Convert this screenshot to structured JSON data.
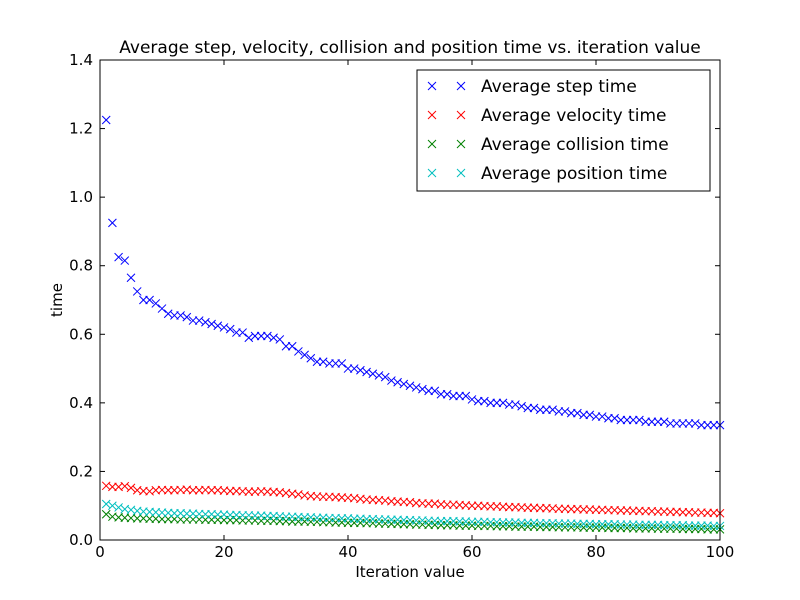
{
  "chart_data": {
    "type": "scatter",
    "title": "Average step, velocity, collision and position time vs. iteration value",
    "xlabel": "Iteration value",
    "ylabel": "time",
    "xlim": [
      0,
      100
    ],
    "ylim": [
      0,
      1.4
    ],
    "x_ticks": [
      "0",
      "20",
      "40",
      "60",
      "80",
      "100"
    ],
    "y_ticks": [
      "0.0",
      "0.2",
      "0.4",
      "0.6",
      "0.8",
      "1.0",
      "1.2",
      "1.4"
    ],
    "grid": false,
    "legend_position": "top-right",
    "marker": "x",
    "x": [
      1,
      2,
      3,
      4,
      5,
      6,
      7,
      8,
      9,
      10,
      11,
      12,
      13,
      14,
      15,
      16,
      17,
      18,
      19,
      20,
      21,
      22,
      23,
      24,
      25,
      26,
      27,
      28,
      29,
      30,
      31,
      32,
      33,
      34,
      35,
      36,
      37,
      38,
      39,
      40,
      41,
      42,
      43,
      44,
      45,
      46,
      47,
      48,
      49,
      50,
      51,
      52,
      53,
      54,
      55,
      56,
      57,
      58,
      59,
      60,
      61,
      62,
      63,
      64,
      65,
      66,
      67,
      68,
      69,
      70,
      71,
      72,
      73,
      74,
      75,
      76,
      77,
      78,
      79,
      80,
      81,
      82,
      83,
      84,
      85,
      86,
      87,
      88,
      89,
      90,
      91,
      92,
      93,
      94,
      95,
      96,
      97,
      98,
      99,
      100
    ],
    "series": [
      {
        "name": "Average step time",
        "color": "#0000ff",
        "values": [
          1.225,
          0.925,
          0.825,
          0.815,
          0.765,
          0.725,
          0.7,
          0.7,
          0.69,
          0.675,
          0.66,
          0.655,
          0.655,
          0.65,
          0.64,
          0.64,
          0.635,
          0.63,
          0.625,
          0.62,
          0.615,
          0.605,
          0.605,
          0.59,
          0.595,
          0.595,
          0.595,
          0.59,
          0.585,
          0.565,
          0.565,
          0.55,
          0.54,
          0.53,
          0.52,
          0.52,
          0.515,
          0.515,
          0.515,
          0.5,
          0.5,
          0.495,
          0.49,
          0.485,
          0.48,
          0.475,
          0.465,
          0.46,
          0.455,
          0.45,
          0.445,
          0.44,
          0.435,
          0.435,
          0.425,
          0.425,
          0.42,
          0.42,
          0.42,
          0.41,
          0.405,
          0.405,
          0.4,
          0.4,
          0.4,
          0.395,
          0.395,
          0.39,
          0.385,
          0.385,
          0.38,
          0.38,
          0.38,
          0.375,
          0.375,
          0.37,
          0.37,
          0.365,
          0.365,
          0.36,
          0.36,
          0.355,
          0.355,
          0.35,
          0.35,
          0.35,
          0.35,
          0.345,
          0.345,
          0.345,
          0.345,
          0.34,
          0.34,
          0.34,
          0.34,
          0.34,
          0.335,
          0.335,
          0.335,
          0.335
        ]
      },
      {
        "name": "Average velocity time",
        "color": "#ff0000",
        "values": [
          0.158,
          0.155,
          0.155,
          0.157,
          0.152,
          0.145,
          0.143,
          0.142,
          0.145,
          0.146,
          0.145,
          0.145,
          0.146,
          0.147,
          0.145,
          0.145,
          0.146,
          0.145,
          0.145,
          0.144,
          0.143,
          0.143,
          0.142,
          0.141,
          0.141,
          0.142,
          0.141,
          0.14,
          0.139,
          0.137,
          0.135,
          0.133,
          0.13,
          0.128,
          0.127,
          0.126,
          0.126,
          0.125,
          0.124,
          0.123,
          0.122,
          0.12,
          0.118,
          0.117,
          0.116,
          0.115,
          0.113,
          0.112,
          0.111,
          0.11,
          0.108,
          0.107,
          0.106,
          0.106,
          0.104,
          0.103,
          0.103,
          0.102,
          0.101,
          0.1,
          0.1,
          0.099,
          0.098,
          0.098,
          0.097,
          0.096,
          0.096,
          0.095,
          0.094,
          0.094,
          0.093,
          0.093,
          0.092,
          0.091,
          0.091,
          0.09,
          0.09,
          0.089,
          0.089,
          0.088,
          0.088,
          0.087,
          0.087,
          0.086,
          0.086,
          0.085,
          0.085,
          0.084,
          0.084,
          0.083,
          0.083,
          0.082,
          0.082,
          0.081,
          0.081,
          0.08,
          0.08,
          0.079,
          0.079,
          0.078
        ]
      },
      {
        "name": "Average collision time",
        "color": "#008000",
        "values": [
          0.075,
          0.068,
          0.066,
          0.065,
          0.064,
          0.063,
          0.063,
          0.062,
          0.062,
          0.061,
          0.061,
          0.061,
          0.06,
          0.06,
          0.06,
          0.06,
          0.059,
          0.059,
          0.059,
          0.058,
          0.058,
          0.058,
          0.057,
          0.057,
          0.057,
          0.056,
          0.056,
          0.056,
          0.055,
          0.055,
          0.054,
          0.054,
          0.054,
          0.053,
          0.053,
          0.052,
          0.052,
          0.051,
          0.051,
          0.05,
          0.05,
          0.05,
          0.049,
          0.049,
          0.048,
          0.048,
          0.047,
          0.047,
          0.046,
          0.046,
          0.045,
          0.045,
          0.044,
          0.044,
          0.043,
          0.043,
          0.043,
          0.042,
          0.042,
          0.042,
          0.041,
          0.041,
          0.041,
          0.04,
          0.04,
          0.04,
          0.039,
          0.039,
          0.039,
          0.039,
          0.038,
          0.038,
          0.038,
          0.037,
          0.037,
          0.037,
          0.037,
          0.036,
          0.036,
          0.036,
          0.036,
          0.035,
          0.035,
          0.035,
          0.035,
          0.034,
          0.034,
          0.034,
          0.034,
          0.033,
          0.033,
          0.033,
          0.033,
          0.032,
          0.032,
          0.032,
          0.032,
          0.031,
          0.031,
          0.031
        ]
      },
      {
        "name": "Average position time",
        "color": "#00bfbf",
        "values": [
          0.105,
          0.1,
          0.095,
          0.09,
          0.088,
          0.085,
          0.083,
          0.082,
          0.081,
          0.08,
          0.079,
          0.078,
          0.078,
          0.077,
          0.077,
          0.076,
          0.075,
          0.075,
          0.074,
          0.074,
          0.073,
          0.073,
          0.072,
          0.072,
          0.071,
          0.071,
          0.07,
          0.07,
          0.069,
          0.068,
          0.068,
          0.067,
          0.066,
          0.066,
          0.065,
          0.065,
          0.064,
          0.064,
          0.063,
          0.063,
          0.062,
          0.062,
          0.061,
          0.061,
          0.06,
          0.06,
          0.059,
          0.059,
          0.058,
          0.058,
          0.057,
          0.057,
          0.056,
          0.056,
          0.055,
          0.055,
          0.055,
          0.054,
          0.054,
          0.053,
          0.053,
          0.053,
          0.052,
          0.052,
          0.051,
          0.051,
          0.051,
          0.05,
          0.05,
          0.05,
          0.049,
          0.049,
          0.049,
          0.048,
          0.048,
          0.048,
          0.047,
          0.047,
          0.047,
          0.046,
          0.046,
          0.046,
          0.046,
          0.045,
          0.045,
          0.045,
          0.044,
          0.044,
          0.044,
          0.044,
          0.043,
          0.043,
          0.043,
          0.043,
          0.042,
          0.042,
          0.042,
          0.042,
          0.041,
          0.041
        ]
      }
    ]
  }
}
